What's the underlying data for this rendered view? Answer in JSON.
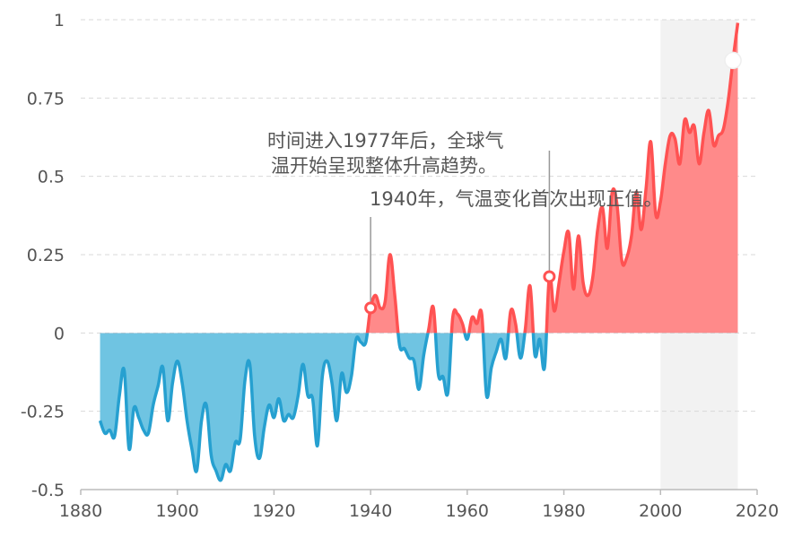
{
  "chart_data": {
    "type": "area",
    "title": "",
    "xlabel": "",
    "ylabel": "",
    "xlim": [
      1880,
      2020
    ],
    "ylim": [
      -0.5,
      1
    ],
    "x_ticks": [
      "1880",
      "1900",
      "1920",
      "1940",
      "1960",
      "1980",
      "2000",
      "2020"
    ],
    "y_ticks": [
      "1",
      "0.75",
      "0.5",
      "0.25",
      "0",
      "-0.25",
      "-0.5"
    ],
    "grid": "horizontal-dashed",
    "colors": {
      "positive": "#ff5252",
      "positive_fill": "#ff8a8a",
      "negative": "#26a0d0",
      "negative_fill": "#6fc4e2",
      "highlight_band": "#f2f2f2"
    },
    "highlight_range": [
      2000,
      2016
    ],
    "series": [
      {
        "x": [
          1884,
          1885,
          1886,
          1887,
          1888,
          1889,
          1890,
          1891,
          1892,
          1893,
          1894,
          1895,
          1896,
          1897,
          1898,
          1899,
          1900,
          1901,
          1902,
          1903,
          1904,
          1905,
          1906,
          1907,
          1908,
          1909,
          1910,
          1911,
          1912,
          1913,
          1914,
          1915,
          1916,
          1917,
          1918,
          1919,
          1920,
          1921,
          1922,
          1923,
          1924,
          1925,
          1926,
          1927,
          1928,
          1929,
          1930,
          1931,
          1932,
          1933,
          1934,
          1935,
          1936,
          1937,
          1938,
          1939,
          1940,
          1941,
          1942,
          1943,
          1944,
          1945,
          1946,
          1947,
          1948,
          1949,
          1950,
          1951,
          1952,
          1953,
          1954,
          1955,
          1956,
          1957,
          1958,
          1959,
          1960,
          1961,
          1962,
          1963,
          1964,
          1965,
          1966,
          1967,
          1968,
          1969,
          1970,
          1971,
          1972,
          1973,
          1974,
          1975,
          1976,
          1977,
          1978,
          1979,
          1980,
          1981,
          1982,
          1983,
          1984,
          1985,
          1986,
          1987,
          1988,
          1989,
          1990,
          1991,
          1992,
          1993,
          1994,
          1995,
          1996,
          1997,
          1998,
          1999,
          2000,
          2001,
          2002,
          2003,
          2004,
          2005,
          2006,
          2007,
          2008,
          2009,
          2010,
          2011,
          2012,
          2013,
          2014,
          2015,
          2016
        ],
        "y": [
          -0.28,
          -0.32,
          -0.31,
          -0.33,
          -0.2,
          -0.12,
          -0.37,
          -0.24,
          -0.27,
          -0.31,
          -0.32,
          -0.23,
          -0.17,
          -0.11,
          -0.28,
          -0.16,
          -0.09,
          -0.16,
          -0.28,
          -0.37,
          -0.44,
          -0.28,
          -0.23,
          -0.39,
          -0.44,
          -0.47,
          -0.42,
          -0.44,
          -0.35,
          -0.34,
          -0.15,
          -0.1,
          -0.33,
          -0.4,
          -0.3,
          -0.23,
          -0.27,
          -0.21,
          -0.28,
          -0.26,
          -0.27,
          -0.2,
          -0.1,
          -0.2,
          -0.21,
          -0.36,
          -0.14,
          -0.09,
          -0.16,
          -0.28,
          -0.13,
          -0.19,
          -0.14,
          -0.02,
          -0.03,
          -0.03,
          0.08,
          0.12,
          0.08,
          0.1,
          0.25,
          0.12,
          -0.04,
          -0.05,
          -0.08,
          -0.09,
          -0.18,
          -0.07,
          0.01,
          0.08,
          -0.13,
          -0.14,
          -0.19,
          0.05,
          0.06,
          0.03,
          -0.02,
          0.05,
          0.03,
          0.06,
          -0.2,
          -0.11,
          -0.06,
          -0.02,
          -0.08,
          0.07,
          0.03,
          -0.08,
          0.01,
          0.15,
          -0.07,
          -0.02,
          -0.11,
          0.18,
          0.07,
          0.16,
          0.26,
          0.32,
          0.14,
          0.31,
          0.16,
          0.12,
          0.18,
          0.33,
          0.4,
          0.27,
          0.45,
          0.41,
          0.23,
          0.24,
          0.31,
          0.45,
          0.33,
          0.46,
          0.61,
          0.38,
          0.42,
          0.54,
          0.63,
          0.62,
          0.54,
          0.68,
          0.64,
          0.66,
          0.54,
          0.64,
          0.71,
          0.6,
          0.63,
          0.65,
          0.74,
          0.87,
          0.99
        ]
      }
    ],
    "annotations": [
      {
        "text_line1": "时间进入1977年后，全球气",
        "text_line2": "温开始呈现整体升高趋势。",
        "x": 1977,
        "y": 0.18
      },
      {
        "text": "1940年，气温变化首次出现正值。",
        "x": 1940,
        "y": 0.08
      }
    ],
    "highlight_point": {
      "x": 2015,
      "y": 0.87
    }
  }
}
